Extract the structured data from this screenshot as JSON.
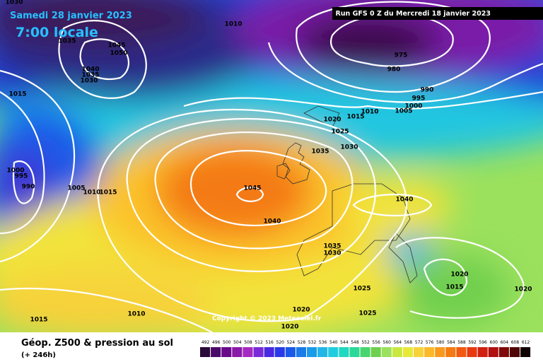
{
  "header": {
    "date": "Samedi 28 janvier 2023",
    "time": "7:00 locale",
    "run": "Run GFS 0 Z du Mercredi 18 janvier 2023",
    "copyright": "Copyright © 2023 Meteociel.fr"
  },
  "footer": {
    "title": "Géop. Z500 & pression au sol",
    "lead": "(+ 246h)"
  },
  "scale": [
    492,
    496,
    500,
    504,
    508,
    512,
    516,
    520,
    524,
    528,
    532,
    536,
    540,
    544,
    548,
    552,
    556,
    560,
    564,
    568,
    572,
    576,
    580,
    584,
    588,
    592,
    596,
    600,
    604,
    608,
    612
  ],
  "isobar_labels": [
    1030,
    1010,
    1035,
    1045,
    1050,
    1040,
    1035,
    1030,
    1015,
    975,
    980,
    990,
    995,
    1000,
    1005,
    1010,
    1015,
    1020,
    1025,
    1030,
    1035,
    1000,
    995,
    990,
    1005,
    1010,
    1015,
    1045,
    1040,
    1040,
    1035,
    1030,
    1020,
    1015,
    1025,
    1020,
    1015,
    1010,
    1020,
    1025,
    1020
  ]
}
